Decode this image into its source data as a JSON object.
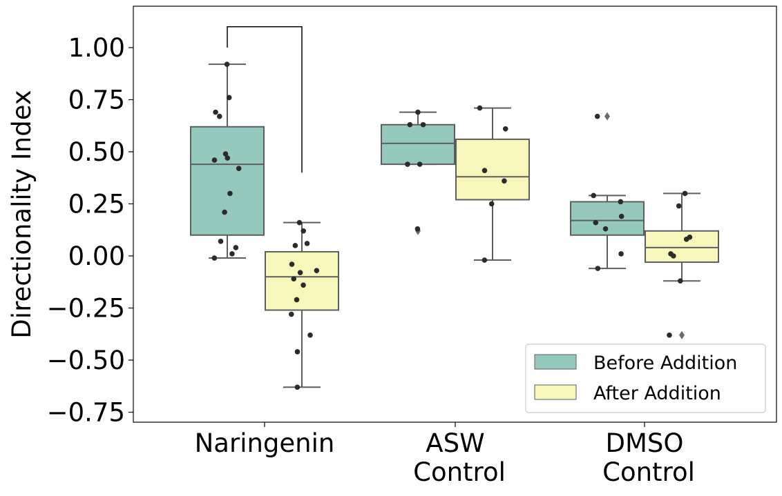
{
  "chart_data": {
    "type": "box",
    "title": "",
    "xlabel": "",
    "ylabel": "Directionality Index",
    "categories": [
      "Naringenin",
      "ASW\nControl",
      "DMSO\nControl"
    ],
    "ylim": [
      -0.8,
      1.2
    ],
    "yticks": [
      -0.75,
      -0.5,
      -0.25,
      0.0,
      0.25,
      0.5,
      0.75,
      1.0
    ],
    "ytick_labels": [
      "−0.75",
      "−0.50",
      "−0.25",
      "0.00",
      "0.25",
      "0.50",
      "0.75",
      "1.00"
    ],
    "grid": false,
    "legend_position": "lower-right",
    "significance_bracket": {
      "category": "Naringenin",
      "y_top": 1.1,
      "left_y_bottom": 1.0,
      "right_y_bottom": 0.4
    },
    "series": [
      {
        "name": "Before Addition",
        "color": "#96c9be",
        "boxes": [
          {
            "category": "Naringenin",
            "q1": 0.1,
            "median": 0.44,
            "q3": 0.62,
            "whisker_low": -0.01,
            "whisker_high": 0.92,
            "outliers": [],
            "points": [
              0.92,
              0.76,
              0.69,
              0.67,
              0.49,
              0.47,
              0.46,
              0.42,
              0.3,
              0.21,
              0.07,
              0.04,
              0.01,
              -0.01
            ]
          },
          {
            "category": "ASW\nControl",
            "q1": 0.44,
            "median": 0.54,
            "q3": 0.63,
            "whisker_low": 0.44,
            "whisker_high": 0.69,
            "outliers": [
              0.12
            ],
            "points": [
              0.69,
              0.63,
              0.63,
              0.44,
              0.44,
              0.13
            ]
          },
          {
            "category": "DMSO\nControl",
            "q1": 0.1,
            "median": 0.17,
            "q3": 0.26,
            "whisker_low": -0.06,
            "whisker_high": 0.29,
            "outliers": [
              0.67
            ],
            "points": [
              0.67,
              0.29,
              0.26,
              0.19,
              0.16,
              0.13,
              0.01,
              -0.06
            ]
          }
        ]
      },
      {
        "name": "After Addition",
        "color": "#f7f6bb",
        "boxes": [
          {
            "category": "Naringenin",
            "q1": -0.26,
            "median": -0.1,
            "q3": 0.02,
            "whisker_low": -0.63,
            "whisker_high": 0.16,
            "outliers": [],
            "points": [
              0.16,
              0.12,
              0.06,
              0.05,
              -0.04,
              -0.07,
              -0.08,
              -0.11,
              -0.14,
              -0.21,
              -0.28,
              -0.38,
              -0.46,
              -0.63
            ]
          },
          {
            "category": "ASW\nControl",
            "q1": 0.27,
            "median": 0.38,
            "q3": 0.56,
            "whisker_low": -0.02,
            "whisker_high": 0.71,
            "outliers": [],
            "points": [
              0.71,
              0.61,
              0.41,
              0.36,
              0.25,
              -0.02
            ]
          },
          {
            "category": "DMSO\nControl",
            "q1": -0.03,
            "median": 0.04,
            "q3": 0.12,
            "whisker_low": -0.12,
            "whisker_high": 0.3,
            "outliers": [
              -0.38
            ],
            "points": [
              0.3,
              0.24,
              0.09,
              0.08,
              0.01,
              0.0,
              -0.12,
              -0.38
            ]
          }
        ]
      }
    ]
  }
}
